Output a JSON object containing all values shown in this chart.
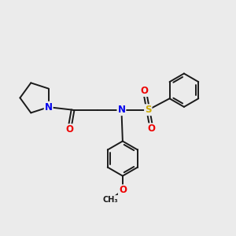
{
  "bg_color": "#ebebeb",
  "bond_color": "#1a1a1a",
  "bond_width": 1.4,
  "atom_colors": {
    "N": "#0000ee",
    "O": "#ee0000",
    "S": "#ccaa00",
    "C": "#1a1a1a"
  },
  "font_size_atom": 8.5,
  "fig_width": 3.0,
  "fig_height": 3.0,
  "xlim": [
    0.0,
    10.0
  ],
  "ylim": [
    1.5,
    9.5
  ]
}
